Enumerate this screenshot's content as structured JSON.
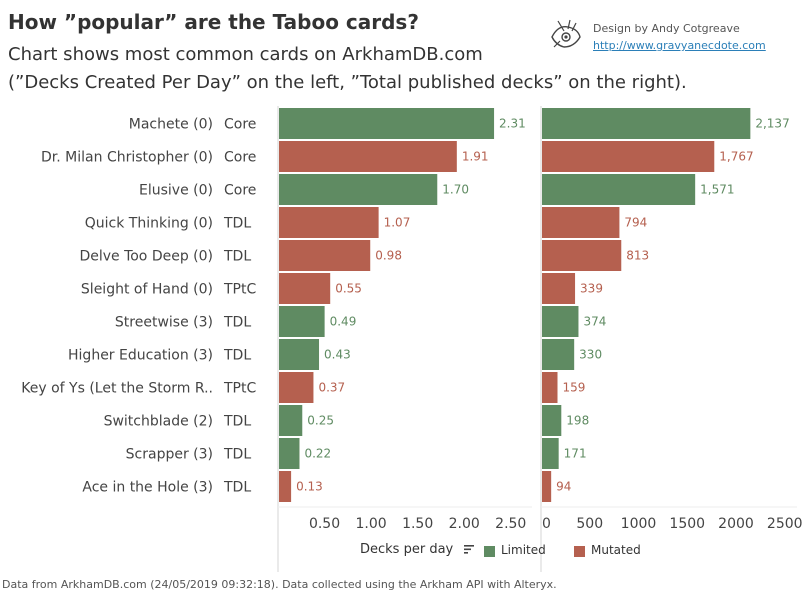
{
  "header": {
    "title": "How ”popular” are the Taboo cards?",
    "subtitle_line1": "Chart shows most common cards on ArkhamDB.com",
    "subtitle_line2": "(”Decks Created Per Day” on the left, ”Total published decks” on the right).",
    "credit": "Design by Andy Cotgreave",
    "credit_link": "http://www.gravyanecdote.com"
  },
  "footer": "Data from ArkhamDB.com (24/05/2019 09:32:18). Data collected using the Arkham API with Alteryx.",
  "legend": {
    "title": "Decks per day",
    "items": [
      {
        "label": "Limited",
        "color": "#5f8b62"
      },
      {
        "label": "Mutated",
        "color": "#b5604f"
      }
    ]
  },
  "colors": {
    "Limited": "#5f8b62",
    "Mutated": "#b5604f"
  },
  "chart_data": [
    {
      "type": "bar",
      "orientation": "horizontal",
      "measure": "Decks Created Per Day",
      "categories": [
        "Machete (0)",
        "Dr. Milan Christopher (0)",
        "Elusive (0)",
        "Quick Thinking (0)",
        "Delve Too Deep (0)",
        "Sleight of Hand (0)",
        "Streetwise (3)",
        "Higher Education (3)",
        "Key of Ys (Let the Storm R..",
        "Switchblade (2)",
        "Scrapper (3)",
        "Ace in the Hole (3)"
      ],
      "packs": [
        "Core",
        "Core",
        "Core",
        "TDL",
        "TDL",
        "TPtC",
        "TDL",
        "TDL",
        "TPtC",
        "TDL",
        "TDL",
        "TDL"
      ],
      "groups": [
        "Limited",
        "Mutated",
        "Limited",
        "Mutated",
        "Mutated",
        "Mutated",
        "Limited",
        "Limited",
        "Mutated",
        "Limited",
        "Limited",
        "Mutated"
      ],
      "values": [
        2.31,
        1.91,
        1.7,
        1.07,
        0.98,
        0.55,
        0.49,
        0.43,
        0.37,
        0.25,
        0.22,
        0.13
      ],
      "value_labels": [
        "2.31",
        "1.91",
        "1.70",
        "1.07",
        "0.98",
        "0.55",
        "0.49",
        "0.43",
        "0.37",
        "0.25",
        "0.22",
        "0.13"
      ],
      "xlim": [
        0,
        2.75
      ],
      "ticks": [
        0.5,
        1.0,
        1.5,
        2.0,
        2.5
      ],
      "tick_labels": [
        "0.50",
        "1.00",
        "1.50",
        "2.00",
        "2.50"
      ]
    },
    {
      "type": "bar",
      "orientation": "horizontal",
      "measure": "Total published decks",
      "categories": [
        "Machete (0)",
        "Dr. Milan Christopher (0)",
        "Elusive (0)",
        "Quick Thinking (0)",
        "Delve Too Deep (0)",
        "Sleight of Hand (0)",
        "Streetwise (3)",
        "Higher Education (3)",
        "Key of Ys (Let the Storm R..",
        "Switchblade (2)",
        "Scrapper (3)",
        "Ace in the Hole (3)"
      ],
      "groups": [
        "Limited",
        "Mutated",
        "Limited",
        "Mutated",
        "Mutated",
        "Mutated",
        "Limited",
        "Limited",
        "Mutated",
        "Limited",
        "Limited",
        "Mutated"
      ],
      "values": [
        2137,
        1767,
        1571,
        794,
        813,
        339,
        374,
        330,
        159,
        198,
        171,
        94
      ],
      "value_labels": [
        "2,137",
        "1,767",
        "1,571",
        "794",
        "813",
        "339",
        "374",
        "330",
        "159",
        "198",
        "171",
        "94"
      ],
      "xlim": [
        0,
        2500
      ],
      "ticks": [
        0,
        500,
        1000,
        1500,
        2000,
        2500
      ],
      "tick_labels": [
        "0",
        "500",
        "1000",
        "1500",
        "2000",
        "2500"
      ]
    }
  ]
}
